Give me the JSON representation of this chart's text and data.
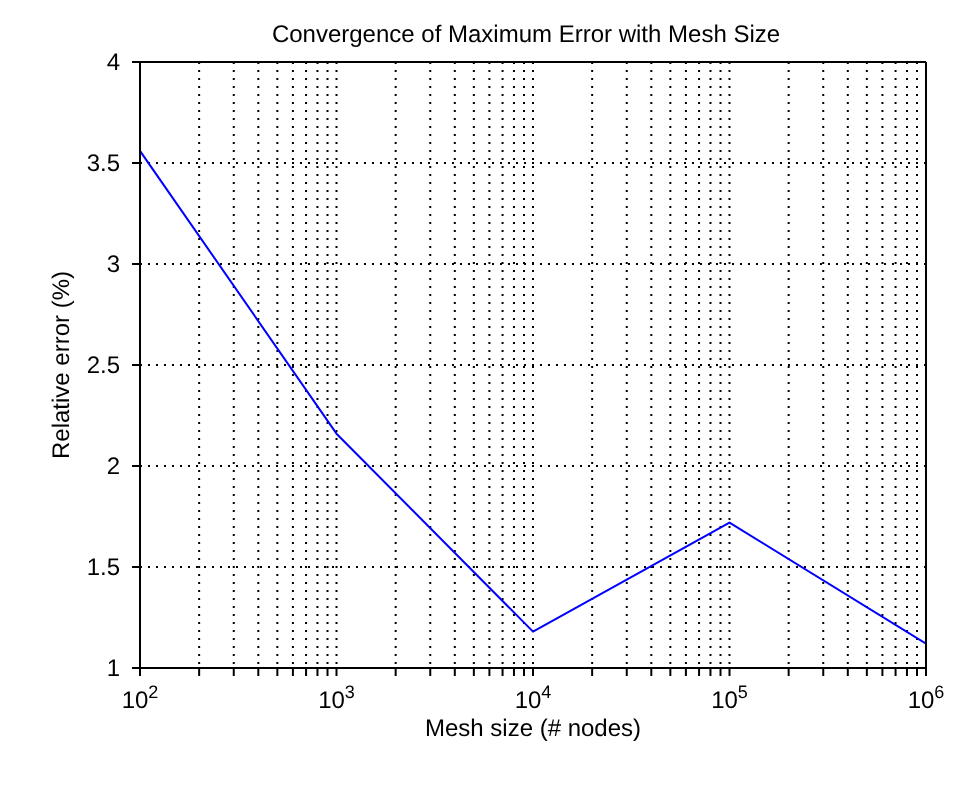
{
  "chart_data": {
    "type": "line",
    "title": "Convergence of Maximum Error with Mesh Size",
    "xlabel": "Mesh size (# nodes)",
    "ylabel": "Relative error (%)",
    "x": [
      100,
      1000,
      10000,
      100000,
      1000000
    ],
    "series": [
      {
        "color": "#0000ff",
        "values": [
          3.56,
          2.16,
          1.18,
          1.72,
          1.12
        ]
      }
    ],
    "log": "x",
    "xlim": [
      100,
      1000000
    ],
    "xticks": [
      {
        "value": 100,
        "label": "10$^{2}$"
      },
      {
        "value": 200,
        "label": null
      },
      {
        "value": 300,
        "label": null
      },
      {
        "value": 400,
        "label": null
      },
      {
        "value": 500,
        "label": null
      },
      {
        "value": 600,
        "label": null
      },
      {
        "value": 700,
        "label": null
      },
      {
        "value": 800,
        "label": null
      },
      {
        "value": 900,
        "label": null
      },
      {
        "value": 1000,
        "label": "10$^{3}$"
      },
      {
        "value": 2000,
        "label": null
      },
      {
        "value": 3000,
        "label": null
      },
      {
        "value": 4000,
        "label": null
      },
      {
        "value": 5000,
        "label": null
      },
      {
        "value": 6000,
        "label": null
      },
      {
        "value": 7000,
        "label": null
      },
      {
        "value": 8000,
        "label": null
      },
      {
        "value": 9000,
        "label": null
      },
      {
        "value": 10000,
        "label": "10$^{4}$"
      },
      {
        "value": 20000,
        "label": null
      },
      {
        "value": 30000,
        "label": null
      },
      {
        "value": 40000,
        "label": null
      },
      {
        "value": 50000,
        "label": null
      },
      {
        "value": 60000,
        "label": null
      },
      {
        "value": 70000,
        "label": null
      },
      {
        "value": 80000,
        "label": null
      },
      {
        "value": 90000,
        "label": null
      },
      {
        "value": 100000,
        "label": "10$^{5}$"
      },
      {
        "value": 200000,
        "label": null
      },
      {
        "value": 300000,
        "label": null
      },
      {
        "value": 400000,
        "label": null
      },
      {
        "value": 500000,
        "label": null
      },
      {
        "value": 600000,
        "label": null
      },
      {
        "value": 700000,
        "label": null
      },
      {
        "value": 800000,
        "label": null
      },
      {
        "value": 900000,
        "label": null
      },
      {
        "value": 1000000,
        "label": "10$^{6}$"
      }
    ],
    "ylim": [
      1,
      4
    ],
    "yticks": [
      1,
      1.5,
      2,
      2.5,
      3,
      3.5,
      4
    ],
    "grid": true,
    "legend": false,
    "marker": "none",
    "line_style": "solid"
  }
}
